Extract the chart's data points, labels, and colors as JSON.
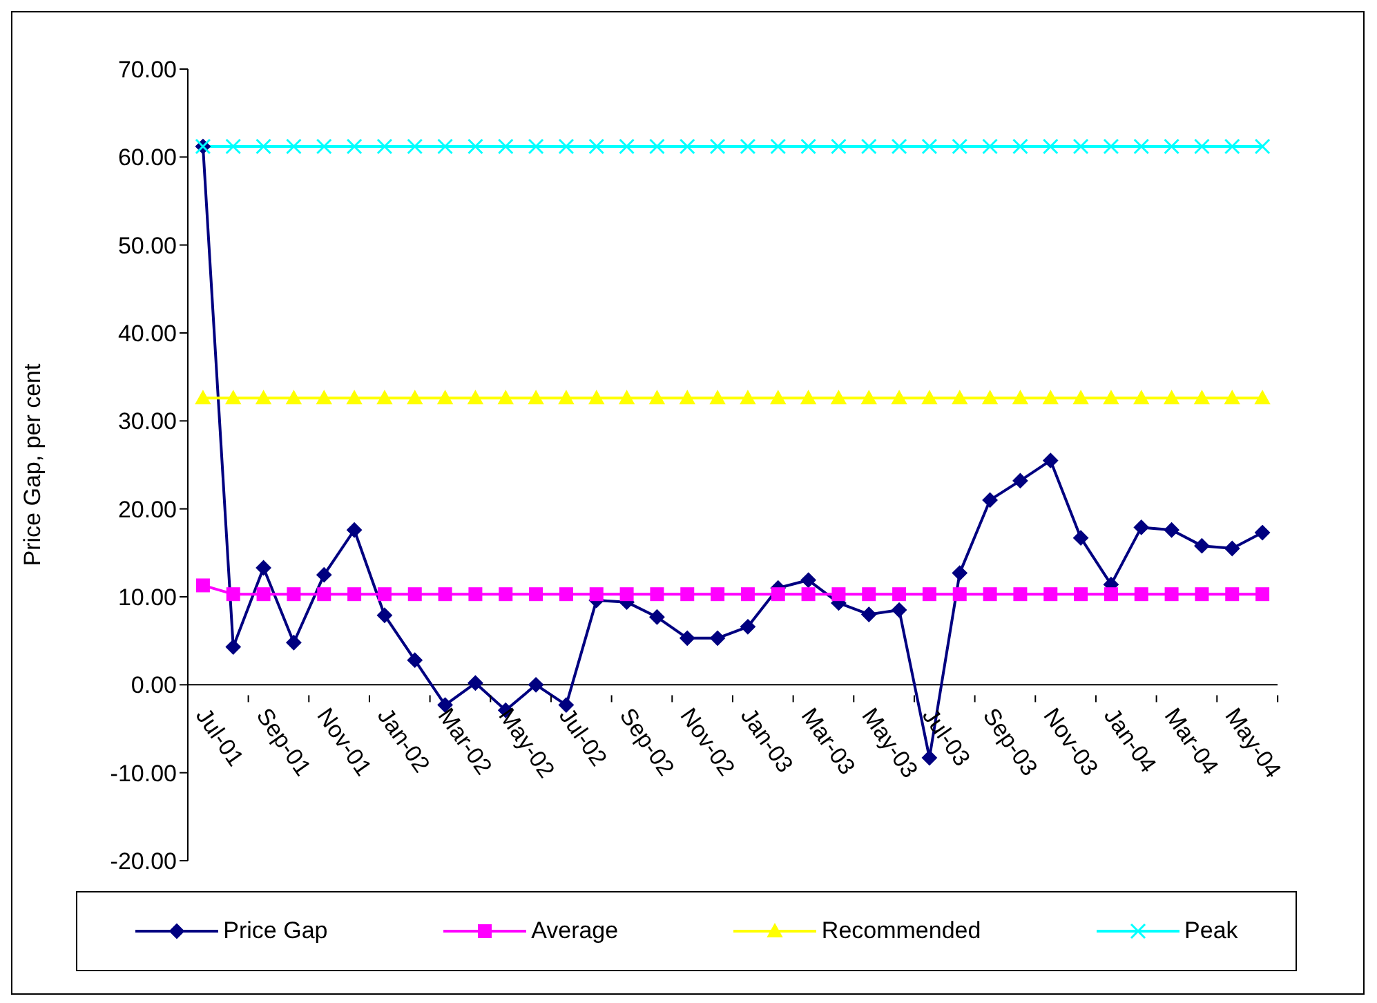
{
  "chart_data": {
    "type": "line",
    "ylabel": "Price Gap, per cent",
    "categories": [
      "Jul-01",
      null,
      "Sep-01",
      null,
      "Nov-01",
      null,
      "Jan-02",
      null,
      "Mar-02",
      null,
      "May-02",
      null,
      "Jul-02",
      null,
      "Sep-02",
      null,
      "Nov-02",
      null,
      "Jan-03",
      null,
      "Mar-03",
      null,
      "May-03",
      null,
      "Jul-03",
      null,
      "Sep-03",
      null,
      "Nov-03",
      null,
      "Jan-04",
      null,
      "Mar-04",
      null,
      "May-04",
      null
    ],
    "series": [
      {
        "name": "Price Gap",
        "color": "#000080",
        "marker": "diamond",
        "values": [
          61.2,
          4.3,
          13.3,
          4.8,
          12.5,
          17.6,
          7.9,
          2.8,
          -2.3,
          0.2,
          -2.9,
          0.0,
          -2.3,
          9.6,
          9.4,
          7.7,
          5.3,
          5.3,
          6.6,
          11.0,
          11.9,
          9.3,
          8.0,
          8.5,
          -8.3,
          12.7,
          21.0,
          23.2,
          25.5,
          16.7,
          11.4,
          17.9,
          17.6,
          15.8,
          15.5,
          17.3
        ]
      },
      {
        "name": "Average",
        "color": "#ff00ff",
        "marker": "square",
        "values": [
          11.3,
          10.3,
          10.3,
          10.3,
          10.3,
          10.3,
          10.3,
          10.3,
          10.3,
          10.3,
          10.3,
          10.3,
          10.3,
          10.3,
          10.3,
          10.3,
          10.3,
          10.3,
          10.3,
          10.3,
          10.3,
          10.3,
          10.3,
          10.3,
          10.3,
          10.3,
          10.3,
          10.3,
          10.3,
          10.3,
          10.3,
          10.3,
          10.3,
          10.3,
          10.3,
          10.3
        ]
      },
      {
        "name": "Recommended",
        "color": "#ffff00",
        "marker": "triangle",
        "values": [
          32.6,
          32.6,
          32.6,
          32.6,
          32.6,
          32.6,
          32.6,
          32.6,
          32.6,
          32.6,
          32.6,
          32.6,
          32.6,
          32.6,
          32.6,
          32.6,
          32.6,
          32.6,
          32.6,
          32.6,
          32.6,
          32.6,
          32.6,
          32.6,
          32.6,
          32.6,
          32.6,
          32.6,
          32.6,
          32.6,
          32.6,
          32.6,
          32.6,
          32.6,
          32.6,
          32.6
        ]
      },
      {
        "name": "Peak",
        "color": "#00ffff",
        "marker": "cross",
        "values": [
          61.2,
          61.2,
          61.2,
          61.2,
          61.2,
          61.2,
          61.2,
          61.2,
          61.2,
          61.2,
          61.2,
          61.2,
          61.2,
          61.2,
          61.2,
          61.2,
          61.2,
          61.2,
          61.2,
          61.2,
          61.2,
          61.2,
          61.2,
          61.2,
          61.2,
          61.2,
          61.2,
          61.2,
          61.2,
          61.2,
          61.2,
          61.2,
          61.2,
          61.2,
          61.2,
          61.2
        ]
      }
    ],
    "ylim": [
      -20,
      70
    ],
    "yticks": [
      {
        "value": -20,
        "label": "-20.00"
      },
      {
        "value": -10,
        "label": "-10.00"
      },
      {
        "value": 0,
        "label": "0.00"
      },
      {
        "value": 10,
        "label": "10.00"
      },
      {
        "value": 20,
        "label": "20.00"
      },
      {
        "value": 30,
        "label": "30.00"
      },
      {
        "value": 40,
        "label": "40.00"
      },
      {
        "value": 50,
        "label": "50.00"
      },
      {
        "value": 60,
        "label": "60.00"
      },
      {
        "value": 70,
        "label": "70.00"
      }
    ],
    "grid": false,
    "legend": "bottom",
    "line_style": "solid"
  }
}
